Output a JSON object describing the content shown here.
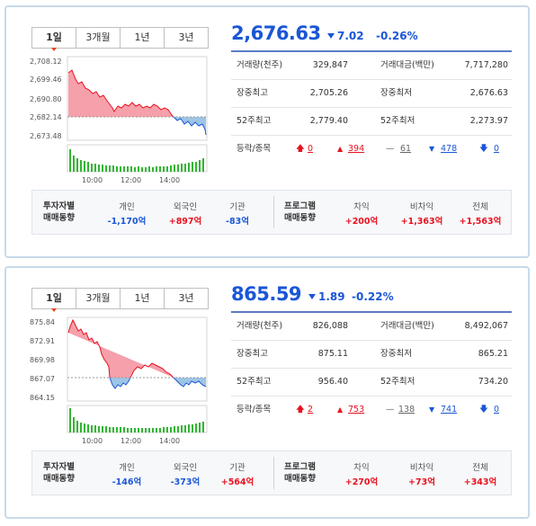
{
  "tabs": [
    "1일",
    "3개월",
    "1년",
    "3년"
  ],
  "chart_x_ticks": [
    "10:00",
    "12:00",
    "14:00"
  ],
  "colors": {
    "up": "#e8111e",
    "down": "#1a56d6",
    "area_up": "#f5a0ab",
    "area_down": "#9ec5e5",
    "volume": "#32b532"
  },
  "panels": [
    {
      "index": {
        "value": "2,676.63",
        "change": "7.02",
        "change_pct": "-0.26%"
      },
      "chart_data": {
        "type": "area",
        "y_ticks": [
          "2,708.12",
          "2,699.46",
          "2,690.80",
          "2,682.14",
          "2,673.48"
        ],
        "baseline": 2682.8
      },
      "stats": {
        "r1": {
          "l1": "거래량(천주)",
          "v1": "329,847",
          "l2": "거래대금(백만)",
          "v2": "7,717,280"
        },
        "r2": {
          "l1": "장중최고",
          "v1": "2,705.26",
          "l2": "장중최저",
          "v2": "2,676.63"
        },
        "r3": {
          "l1": "52주최고",
          "v1": "2,779.40",
          "l2": "52주최저",
          "v2": "2,273.97"
        }
      },
      "updown": {
        "label": "등락/종목",
        "upper": "0",
        "up": "394",
        "flat": "61",
        "down": "478",
        "lower": "0"
      },
      "investors": {
        "label1": "투자자별",
        "label2": "매매동향",
        "individual_label": "개인",
        "individual": "-1,170억",
        "foreign_label": "외국인",
        "foreign": "+897억",
        "institution_label": "기관",
        "institution": "-83억",
        "program_label1": "프로그램",
        "program_label2": "매매동향",
        "arb_label": "차익",
        "arb": "+200억",
        "nonarb_label": "비차익",
        "nonarb": "+1,363억",
        "total_label": "전체",
        "total": "+1,563억"
      }
    },
    {
      "index": {
        "value": "865.59",
        "change": "1.89",
        "change_pct": "-0.22%"
      },
      "chart_data": {
        "type": "area",
        "y_ticks": [
          "875.84",
          "872.91",
          "869.98",
          "867.07",
          "864.15"
        ],
        "baseline": 867.07
      },
      "stats": {
        "r1": {
          "l1": "거래량(천주)",
          "v1": "826,088",
          "l2": "거래대금(백만)",
          "v2": "8,492,067"
        },
        "r2": {
          "l1": "장중최고",
          "v1": "875.11",
          "l2": "장중최저",
          "v2": "865.21"
        },
        "r3": {
          "l1": "52주최고",
          "v1": "956.40",
          "l2": "52주최저",
          "v2": "734.20"
        }
      },
      "updown": {
        "label": "등락/종목",
        "upper": "2",
        "up": "753",
        "flat": "138",
        "down": "741",
        "lower": "0"
      },
      "investors": {
        "label1": "투자자별",
        "label2": "매매동향",
        "individual_label": "개인",
        "individual": "-146억",
        "foreign_label": "외국인",
        "foreign": "-373억",
        "institution_label": "기관",
        "institution": "+564억",
        "program_label1": "프로그램",
        "program_label2": "매매동향",
        "arb_label": "차익",
        "arb": "+270억",
        "nonarb_label": "비차익",
        "nonarb": "+73억",
        "total_label": "전체",
        "total": "+343억"
      }
    }
  ]
}
